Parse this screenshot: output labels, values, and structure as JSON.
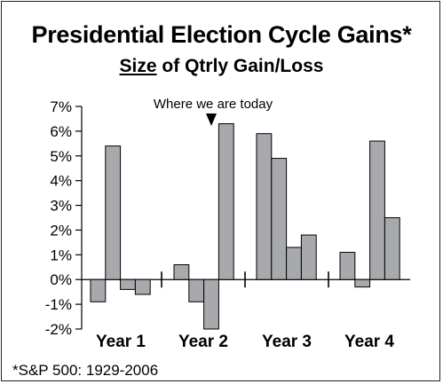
{
  "title": "Presidential Election Cycle Gains*",
  "subtitle": {
    "underlined": "Size",
    "rest": " of Qtrly Gain/Loss"
  },
  "annotation": "Where we are today",
  "footnote": "*S&P 500: 1929-2006",
  "colors": {
    "bar": "#a7a9ac",
    "bar_stroke": "#000000",
    "axis": "#000000"
  },
  "chart_data": {
    "type": "bar",
    "title": "Presidential Election Cycle Gains*",
    "subtitle": "Size of Qtrly Gain/Loss",
    "categories": [
      "Year 1",
      "Year 2",
      "Year 3",
      "Year 4"
    ],
    "bars_per_group": 4,
    "values": [
      [
        -0.9,
        5.4,
        -0.4,
        -0.6
      ],
      [
        0.6,
        -0.9,
        -2.0,
        6.3
      ],
      [
        5.9,
        4.9,
        1.3,
        1.8
      ],
      [
        1.1,
        -0.3,
        5.6,
        2.5
      ]
    ],
    "y_ticks": [
      "7%",
      "6%",
      "5%",
      "4%",
      "3%",
      "2%",
      "1%",
      "0%",
      "-1%",
      "-2%"
    ],
    "ylim": [
      -2,
      7
    ],
    "y_unit": "%",
    "annotation": {
      "text": "Where we are today",
      "group": 1,
      "bar": 3
    },
    "grid": false,
    "legend": "none"
  }
}
